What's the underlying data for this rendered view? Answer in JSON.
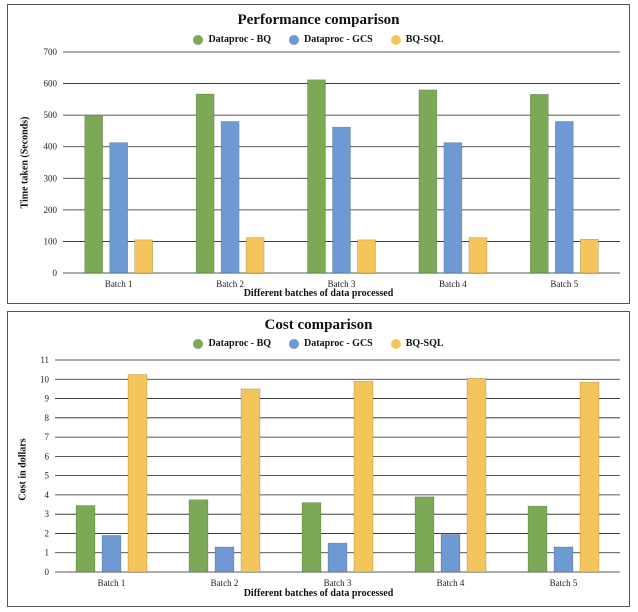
{
  "charts": [
    {
      "title": "Performance comparison",
      "xlabel": "Different batches of data processed",
      "ylabel": "Time taken (Seconds)",
      "legend": [
        "Dataproc - BQ",
        "Dataproc - GCS",
        "BQ-SQL"
      ]
    },
    {
      "title": "Cost comparison",
      "xlabel": "Different batches of data processed",
      "ylabel": "Cost in dollars",
      "legend": [
        "Dataproc - BQ",
        "Dataproc - GCS",
        "BQ-SQL"
      ]
    }
  ],
  "colors": {
    "Dataproc - BQ": "#7ba956",
    "Dataproc - GCS": "#6f99d3",
    "BQ-SQL": "#f4c55a"
  },
  "chart_data": [
    {
      "type": "bar",
      "title": "Performance comparison",
      "xlabel": "Different batches of data processed",
      "ylabel": "Time taken (Seconds)",
      "categories": [
        "Batch 1",
        "Batch 2",
        "Batch 3",
        "Batch 4",
        "Batch 5"
      ],
      "series": [
        {
          "name": "Dataproc - BQ",
          "values": [
            497,
            567,
            612,
            580,
            566
          ]
        },
        {
          "name": "Dataproc - GCS",
          "values": [
            413,
            480,
            462,
            413,
            480
          ]
        },
        {
          "name": "BQ-SQL",
          "values": [
            105,
            112,
            105,
            112,
            107
          ]
        }
      ],
      "ylim": [
        0,
        700
      ],
      "yticks": [
        "0",
        "100",
        "200",
        "300",
        "400",
        "500",
        "600",
        "700"
      ],
      "grid": true,
      "legend_position": "top"
    },
    {
      "type": "bar",
      "title": "Cost comparison",
      "xlabel": "Different batches of data processed",
      "ylabel": "Cost in dollars",
      "categories": [
        "Batch 1",
        "Batch 2",
        "Batch 3",
        "Batch 4",
        "Batch 5"
      ],
      "series": [
        {
          "name": "Dataproc - BQ",
          "values": [
            3.45,
            3.75,
            3.6,
            3.9,
            3.42
          ]
        },
        {
          "name": "Dataproc - GCS",
          "values": [
            1.9,
            1.3,
            1.5,
            1.95,
            1.3
          ]
        },
        {
          "name": "BQ-SQL",
          "values": [
            10.25,
            9.5,
            9.9,
            10.05,
            9.85
          ]
        }
      ],
      "ylim": [
        0,
        11
      ],
      "yticks": [
        "0",
        "1",
        "2",
        "3",
        "4",
        "5",
        "6",
        "7",
        "8",
        "9",
        "10",
        "11"
      ],
      "grid": true,
      "legend_position": "top"
    }
  ]
}
